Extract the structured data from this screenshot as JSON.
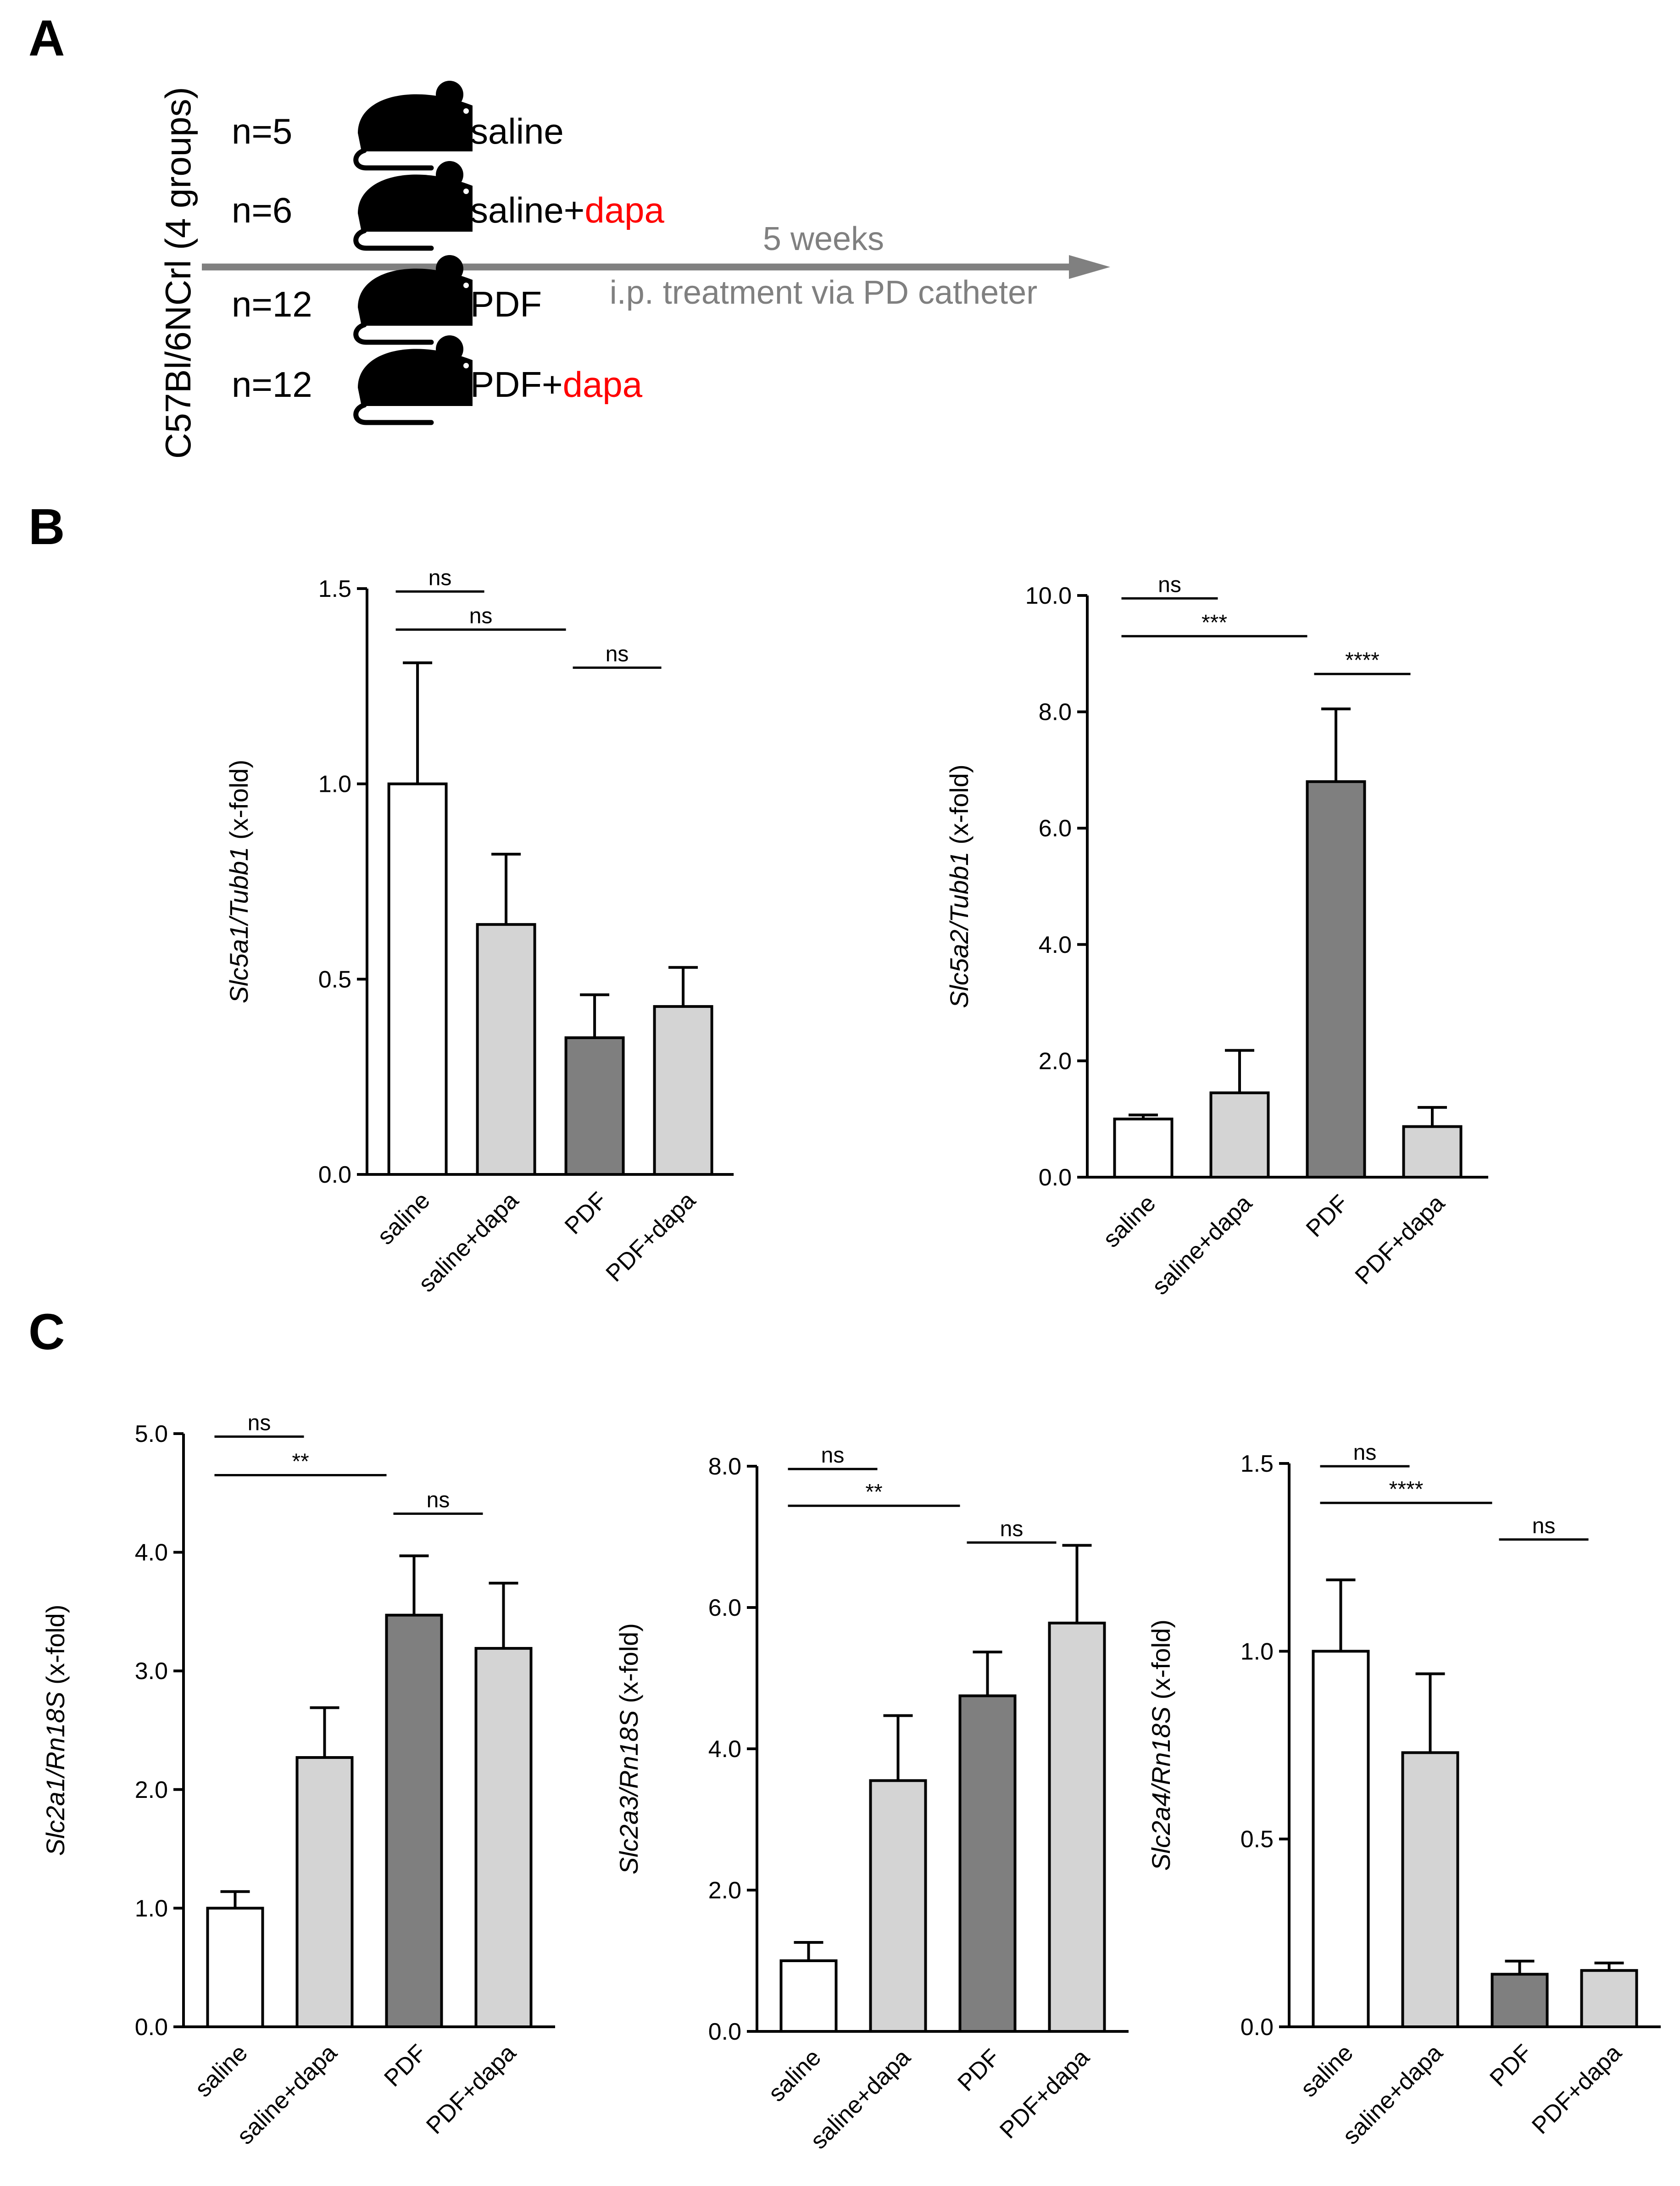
{
  "panels": {
    "a": "A",
    "b": "B",
    "c": "C"
  },
  "colors": {
    "saline": "#ffffff",
    "dapa": "#d4d4d4",
    "pdf": "#7f7f7f",
    "accent_red": "#ff0000",
    "arrow_gray": "#808080"
  },
  "schematic": {
    "strain": "C57Bl/6NCrl (4 groups)",
    "arrow_top": "5 weeks",
    "arrow_bottom": "i.p. treatment via PD catheter",
    "groups": [
      {
        "n": "n=5",
        "label": "saline",
        "red": ""
      },
      {
        "n": "n=6",
        "label": "saline+",
        "red": "dapa"
      },
      {
        "n": "n=12",
        "label": "PDF",
        "red": ""
      },
      {
        "n": "n=12",
        "label": "PDF+",
        "red": "dapa"
      }
    ]
  },
  "chart_data": [
    {
      "id": "B1",
      "type": "bar",
      "ylabel_italic": "Slc5a1/Tubb1",
      "ylabel_rest": " (x-fold)",
      "categories": [
        "saline",
        "saline+dapa",
        "PDF",
        "PDF+dapa"
      ],
      "values": [
        1.0,
        0.64,
        0.35,
        0.43
      ],
      "errors": [
        0.31,
        0.18,
        0.11,
        0.1
      ],
      "ylim": [
        0,
        1.5
      ],
      "ticks": [
        "0.0",
        "0.5",
        "1.0",
        "1.5"
      ],
      "tick_values": [
        0,
        0.5,
        1.0,
        1.5
      ],
      "significance": [
        {
          "from": 0,
          "to": 1,
          "label": "ns"
        },
        {
          "from": 0,
          "to": 2,
          "label": "ns"
        },
        {
          "from": 2,
          "to": 3,
          "label": "ns"
        }
      ]
    },
    {
      "id": "B2",
      "type": "bar",
      "ylabel_italic": "Slc5a2/Tubb1",
      "ylabel_rest": " (x-fold)",
      "categories": [
        "saline",
        "saline+dapa",
        "PDF",
        "PDF+dapa"
      ],
      "values": [
        1.0,
        1.45,
        6.8,
        0.87
      ],
      "errors": [
        0.07,
        0.73,
        1.25,
        0.33
      ],
      "ylim": [
        0,
        10
      ],
      "ticks": [
        "0.0",
        "2.0",
        "4.0",
        "6.0",
        "8.0",
        "10.0"
      ],
      "tick_values": [
        0,
        2,
        4,
        6,
        8,
        10
      ],
      "significance": [
        {
          "from": 0,
          "to": 1,
          "label": "ns"
        },
        {
          "from": 0,
          "to": 2,
          "label": "***"
        },
        {
          "from": 2,
          "to": 3,
          "label": "****"
        }
      ]
    },
    {
      "id": "C1",
      "type": "bar",
      "ylabel_italic": "Slc2a1/Rn18S",
      "ylabel_rest": " (x-fold)",
      "categories": [
        "saline",
        "saline+dapa",
        "PDF",
        "PDF+dapa"
      ],
      "values": [
        1.0,
        2.27,
        3.47,
        3.19
      ],
      "errors": [
        0.14,
        0.42,
        0.5,
        0.55
      ],
      "ylim": [
        0,
        5
      ],
      "ticks": [
        "0.0",
        "1.0",
        "2.0",
        "3.0",
        "4.0",
        "5.0"
      ],
      "tick_values": [
        0,
        1,
        2,
        3,
        4,
        5
      ],
      "significance": [
        {
          "from": 0,
          "to": 1,
          "label": "ns"
        },
        {
          "from": 0,
          "to": 2,
          "label": "**"
        },
        {
          "from": 2,
          "to": 3,
          "label": "ns"
        }
      ]
    },
    {
      "id": "C2",
      "type": "bar",
      "ylabel_italic": "Slc2a3/Rn18S",
      "ylabel_rest": " (x-fold)",
      "categories": [
        "saline",
        "saline+dapa",
        "PDF",
        "PDF+dapa"
      ],
      "values": [
        1.0,
        3.55,
        4.75,
        5.78
      ],
      "errors": [
        0.26,
        0.92,
        0.62,
        1.1
      ],
      "ylim": [
        0,
        8
      ],
      "ticks": [
        "0.0",
        "2.0",
        "4.0",
        "6.0",
        "8.0"
      ],
      "tick_values": [
        0,
        2,
        4,
        6,
        8
      ],
      "significance": [
        {
          "from": 0,
          "to": 1,
          "label": "ns"
        },
        {
          "from": 0,
          "to": 2,
          "label": "**"
        },
        {
          "from": 2,
          "to": 3,
          "label": "ns"
        }
      ]
    },
    {
      "id": "C3",
      "type": "bar",
      "ylabel_italic": "Slc2a4/Rn18S",
      "ylabel_rest": " (x-fold)",
      "categories": [
        "saline",
        "saline+dapa",
        "PDF",
        "PDF+dapa"
      ],
      "values": [
        1.0,
        0.73,
        0.14,
        0.15
      ],
      "errors": [
        0.19,
        0.21,
        0.035,
        0.02
      ],
      "ylim": [
        0,
        1.5
      ],
      "ticks": [
        "0.0",
        "0.5",
        "1.0",
        "1.5"
      ],
      "tick_values": [
        0,
        0.5,
        1.0,
        1.5
      ],
      "significance": [
        {
          "from": 0,
          "to": 1,
          "label": "ns"
        },
        {
          "from": 0,
          "to": 2,
          "label": "****"
        },
        {
          "from": 2,
          "to": 3,
          "label": "ns"
        }
      ]
    }
  ]
}
